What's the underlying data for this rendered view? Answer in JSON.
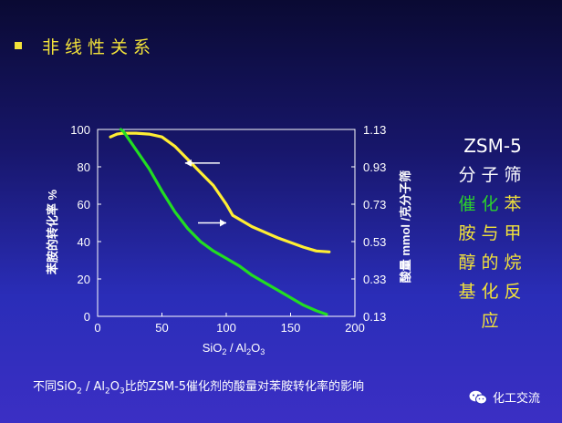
{
  "slide_title": "非线性关系",
  "side_text": {
    "header": "ZSM-5",
    "lines": [
      {
        "text": "分子筛",
        "color": "#ffffff"
      },
      {
        "text": "催化苯",
        "chars": [
          {
            "t": "催",
            "color": "#2bd12b"
          },
          {
            "t": "化",
            "color": "#2bd12b"
          },
          {
            "t": "苯",
            "color": "#f2e23a"
          }
        ]
      },
      {
        "text": "胺与甲",
        "color": "#f2e23a"
      },
      {
        "text": "醇的烷",
        "color": "#f2e23a"
      },
      {
        "text": "基化反",
        "color": "#f2e23a"
      },
      {
        "text": "应",
        "color": "#f2e23a"
      }
    ]
  },
  "caption": {
    "parts": [
      "不同SiO",
      "2",
      " / Al",
      "2",
      "O",
      "3",
      "比的ZSM-5催化剂的酸量对苯胺转化率的影响"
    ]
  },
  "badge": {
    "icon": "wechat-icon",
    "text": "化工交流"
  },
  "chart_data": {
    "type": "line",
    "xlabel_parts": [
      "SiO",
      "2",
      " / Al",
      "2",
      "O",
      "3"
    ],
    "ylabel_left": "苯胺的转化率   %",
    "ylabel_right": "酸量  mmol /克分子筛",
    "xlim": [
      0,
      200
    ],
    "ylim": [
      0,
      100
    ],
    "x_ticks": [
      0,
      50,
      100,
      150,
      200
    ],
    "y_ticks": [
      0,
      20,
      40,
      60,
      80,
      100
    ],
    "right_ticks": [
      "0.13",
      "0.33",
      "0.53",
      "0.73",
      "0.93",
      "1.13"
    ],
    "right_ylim": [
      0.13,
      1.13
    ],
    "series": [
      {
        "color": "#ffee33",
        "axis": "left",
        "x": [
          10,
          15,
          20,
          30,
          40,
          50,
          60,
          70,
          80,
          90,
          100,
          105,
          120,
          140,
          160,
          170,
          180
        ],
        "y": [
          96,
          97.5,
          98,
          98,
          97.5,
          96,
          91,
          84,
          77,
          70,
          60,
          54,
          48,
          42,
          37,
          35,
          34.5
        ]
      },
      {
        "color": "#22dd22",
        "axis": "right",
        "x": [
          18,
          20,
          25,
          30,
          40,
          50,
          60,
          70,
          80,
          90,
          100,
          110,
          120,
          130,
          140,
          150,
          160,
          170,
          178
        ],
        "y": [
          1.13,
          1.12,
          1.07,
          1.02,
          0.92,
          0.8,
          0.69,
          0.6,
          0.53,
          0.48,
          0.44,
          0.4,
          0.35,
          0.31,
          0.27,
          0.23,
          0.19,
          0.16,
          0.14
        ]
      }
    ],
    "arrows": [
      {
        "x_from": 95,
        "x_to": 68,
        "y": 82,
        "direction": "left"
      },
      {
        "x_from": 78,
        "x_to": 100,
        "y": 50,
        "direction": "right"
      }
    ]
  }
}
